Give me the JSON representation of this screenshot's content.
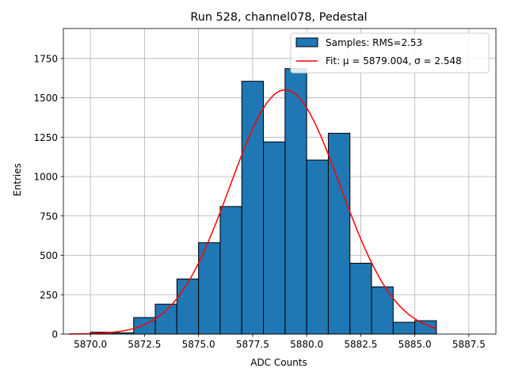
{
  "chart_data": {
    "type": "bar",
    "title": "Run 528, channel078, Pedestal",
    "xlabel": "ADC Counts",
    "ylabel": "Entries",
    "xlim": [
      5868.75,
      5888.75
    ],
    "ylim": [
      0,
      1940
    ],
    "grid": true,
    "legend_position": "top-right",
    "xticks": [
      5870.0,
      5872.5,
      5875.0,
      5877.5,
      5880.0,
      5882.5,
      5885.0,
      5887.5
    ],
    "xtick_labels": [
      "5870.0",
      "5872.5",
      "5875.0",
      "5877.5",
      "5880.0",
      "5882.5",
      "5885.0",
      "5887.5"
    ],
    "yticks": [
      0,
      250,
      500,
      750,
      1000,
      1250,
      1500,
      1750
    ],
    "ytick_labels": [
      "0",
      "250",
      "500",
      "750",
      "1000",
      "1250",
      "1500",
      "1750"
    ],
    "histogram": {
      "name": "Samples: RMS=2.53",
      "color": "#1f77b4",
      "edge_color": "#000000",
      "bin_edges": [
        5870,
        5871,
        5872,
        5873,
        5874,
        5875,
        5876,
        5877,
        5878,
        5879,
        5880,
        5881,
        5882,
        5883,
        5884,
        5885,
        5886
      ],
      "counts": [
        12,
        8,
        105,
        190,
        350,
        580,
        810,
        1605,
        1220,
        1685,
        1105,
        1275,
        450,
        300,
        75,
        85
      ]
    },
    "fit": {
      "name": "Fit: μ = 5879.004, σ = 2.548",
      "color": "#ff0000",
      "mu": 5879.004,
      "sigma": 2.548,
      "amplitude": 1550,
      "x_range": [
        5869,
        5886
      ]
    }
  }
}
